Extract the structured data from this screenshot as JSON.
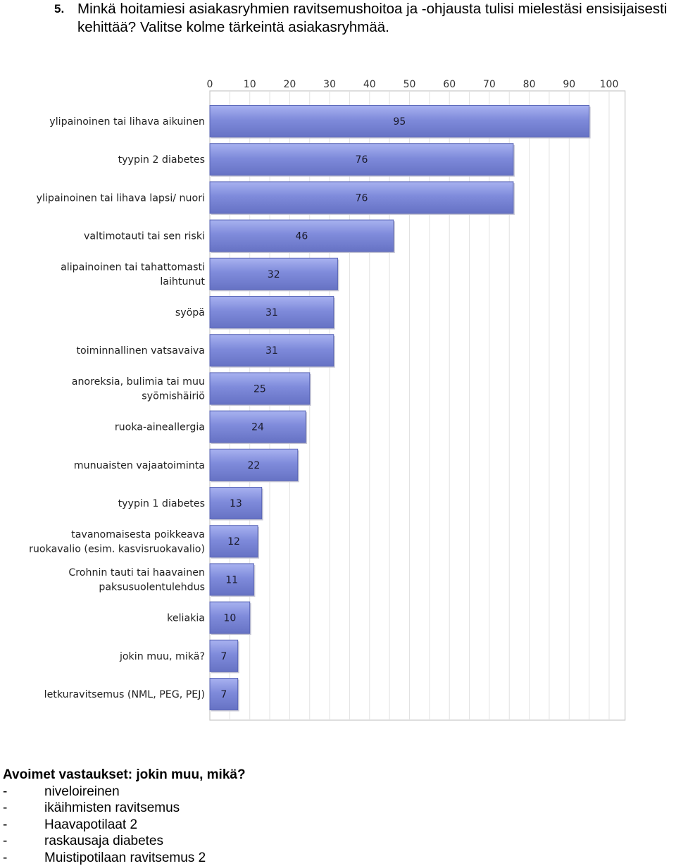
{
  "question": {
    "number": "5.",
    "text": "Minkä hoitamiesi asiakasryhmien ravitsemushoitoa ja -ohjausta tulisi mielestäsi ensisijaisesti kehittää? Valitse kolme tärkeintä asiakasryhmää."
  },
  "chart_data": {
    "type": "bar",
    "orientation": "horizontal",
    "categories": [
      "ylipainoinen tai lihava aikuinen",
      "tyypin 2 diabetes",
      "ylipainoinen tai lihava lapsi/ nuori",
      "valtimotauti tai sen riski",
      "alipainoinen tai tahattomasti laihtunut",
      "syöpä",
      "toiminnallinen vatsavaiva",
      "anoreksia, bulimia tai muu syömishäiriö",
      "ruoka-aineallergia",
      "munuaisten vajaatoiminta",
      "tyypin 1 diabetes",
      "tavanomaisesta poikkeava ruokavalio (esim. kasvisruokavalio)",
      "Crohnin tauti tai haavainen paksusuolentulehdus",
      "keliakia",
      "jokin muu, mikä?",
      "letkuravitsemus (NML, PEG, PEJ)"
    ],
    "label_lines": [
      [
        "ylipainoinen tai lihava aikuinen"
      ],
      [
        "tyypin 2 diabetes"
      ],
      [
        "ylipainoinen tai lihava lapsi/ nuori"
      ],
      [
        "valtimotauti tai sen riski"
      ],
      [
        "alipainoinen tai tahattomasti",
        "laihtunut"
      ],
      [
        "syöpä"
      ],
      [
        "toiminnallinen vatsavaiva"
      ],
      [
        "anoreksia, bulimia tai muu",
        "syömishäiriö"
      ],
      [
        "ruoka-aineallergia"
      ],
      [
        "munuaisten vajaatoiminta"
      ],
      [
        "tyypin 1 diabetes"
      ],
      [
        "tavanomaisesta poikkeava",
        "ruokavalio (esim. kasvisruokavalio)"
      ],
      [
        "Crohnin tauti tai haavainen",
        "paksusuolentulehdus"
      ],
      [
        "keliakia"
      ],
      [
        "jokin muu, mikä?"
      ],
      [
        "letkuravitsemus (NML, PEG, PEJ)"
      ]
    ],
    "values": [
      95,
      76,
      76,
      46,
      32,
      31,
      31,
      25,
      24,
      22,
      13,
      12,
      11,
      10,
      7,
      7
    ],
    "value_labels": [
      "95",
      "76",
      "76",
      "46",
      "32",
      "31",
      "31",
      "25",
      "24",
      "22",
      "13",
      "12",
      "11",
      "10",
      "7",
      "7"
    ],
    "xlim": [
      0,
      104
    ],
    "xticks": [
      0,
      10,
      20,
      30,
      40,
      50,
      60,
      70,
      80,
      90,
      100
    ],
    "xtick_labels": [
      "0",
      "10",
      "20",
      "30",
      "40",
      "50",
      "60",
      "70",
      "80",
      "90",
      "100"
    ],
    "axis_position": "top",
    "grid": true,
    "colors": {
      "bar": "#7a86d6",
      "bar_light": "#9aa6ee",
      "bar_dark": "#5a66b6",
      "grid": "#e2e2e2",
      "frame": "#c8c8c8"
    }
  },
  "open_answers": {
    "title": "Avoimet vastaukset: jokin muu, mikä?",
    "items": [
      {
        "dash": "-",
        "text": "niveloireinen"
      },
      {
        "dash": "-",
        "text": "ikäihmisten ravitsemus"
      },
      {
        "dash": "-",
        "text": "Haavapotilaat 2"
      },
      {
        "dash": "-",
        "text": "raskausaja diabetes"
      },
      {
        "dash": "-",
        "text": "Muistipotilaan ravitsemus 2"
      }
    ]
  }
}
